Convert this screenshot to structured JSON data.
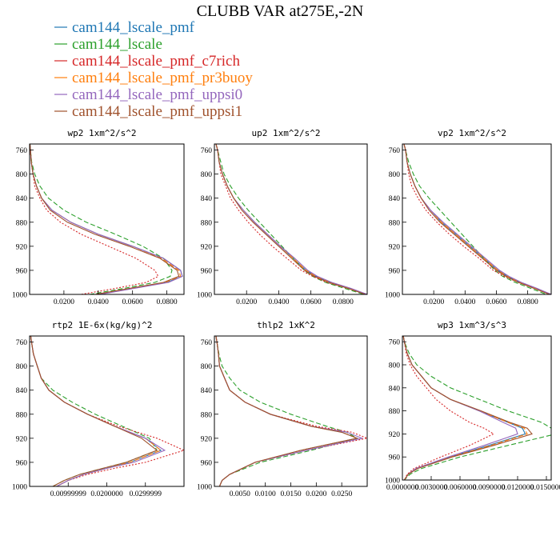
{
  "title": "CLUBB VAR at275E,-2N",
  "legend": [
    {
      "name": "cam144_lscale_pmf",
      "color": "#1f77b4"
    },
    {
      "name": "cam144_lscale",
      "color": "#2ca02c"
    },
    {
      "name": "cam144_lscale_pmf_c7rich",
      "color": "#d62728"
    },
    {
      "name": "cam144_lscale_pmf_pr3buoy",
      "color": "#ff7f0e"
    },
    {
      "name": "cam144_lscale_pmf_uppsi0",
      "color": "#9467bd"
    },
    {
      "name": "cam144_lscale_pmf_uppsi1",
      "color": "#a0522d"
    }
  ],
  "chart_data": [
    {
      "type": "line",
      "title": "wp2   1xm^2/s^2",
      "xlim": [
        0,
        0.09
      ],
      "ylim": [
        1000,
        750
      ],
      "xticks": [
        "0.0200",
        "0.0400",
        "0.0600",
        "0.0800"
      ],
      "xtick_values": [
        0.02,
        0.04,
        0.06,
        0.08
      ],
      "yticks": [
        760,
        800,
        840,
        880,
        920,
        960,
        1000
      ],
      "y": [
        750,
        760,
        780,
        800,
        820,
        840,
        860,
        880,
        900,
        920,
        940,
        960,
        970,
        980,
        990,
        1000
      ],
      "series": [
        {
          "name": "cam144_lscale_pmf",
          "values": [
            0.0002,
            0.0005,
            0.001,
            0.002,
            0.004,
            0.007,
            0.013,
            0.024,
            0.04,
            0.06,
            0.078,
            0.088,
            0.089,
            0.08,
            0.06,
            0.04
          ]
        },
        {
          "name": "cam144_lscale",
          "values": [
            0.0002,
            0.0005,
            0.0012,
            0.003,
            0.006,
            0.011,
            0.02,
            0.033,
            0.05,
            0.066,
            0.078,
            0.083,
            0.082,
            0.073,
            0.055,
            0.035
          ]
        },
        {
          "name": "cam144_lscale_pmf_c7rich",
          "values": [
            0.0002,
            0.0004,
            0.001,
            0.002,
            0.003,
            0.006,
            0.01,
            0.018,
            0.03,
            0.046,
            0.062,
            0.073,
            0.075,
            0.068,
            0.05,
            0.03
          ]
        },
        {
          "name": "cam144_lscale_pmf_pr3buoy",
          "values": [
            0.0002,
            0.0005,
            0.001,
            0.002,
            0.004,
            0.007,
            0.013,
            0.024,
            0.04,
            0.06,
            0.077,
            0.087,
            0.088,
            0.079,
            0.06,
            0.04
          ]
        },
        {
          "name": "cam144_lscale_pmf_uppsi0",
          "values": [
            0.0002,
            0.0005,
            0.001,
            0.002,
            0.004,
            0.007,
            0.013,
            0.024,
            0.04,
            0.06,
            0.078,
            0.088,
            0.089,
            0.081,
            0.061,
            0.041
          ]
        },
        {
          "name": "cam144_lscale_pmf_uppsi1",
          "values": [
            0.0002,
            0.0005,
            0.001,
            0.002,
            0.004,
            0.007,
            0.012,
            0.022,
            0.038,
            0.058,
            0.076,
            0.086,
            0.087,
            0.078,
            0.058,
            0.038
          ]
        }
      ]
    },
    {
      "type": "line",
      "title": "up2   1xm^2/s^2",
      "xlim": [
        0,
        0.095
      ],
      "ylim": [
        1000,
        750
      ],
      "xticks": [
        "0.0200",
        "0.0400",
        "0.0600",
        "0.0800"
      ],
      "xtick_values": [
        0.02,
        0.04,
        0.06,
        0.08
      ],
      "yticks": [
        760,
        800,
        840,
        880,
        920,
        960,
        1000
      ],
      "y": [
        750,
        760,
        780,
        800,
        820,
        840,
        860,
        880,
        900,
        920,
        940,
        960,
        970,
        980,
        990,
        1000
      ],
      "series": [
        {
          "name": "cam144_lscale_pmf",
          "values": [
            0.001,
            0.002,
            0.003,
            0.005,
            0.008,
            0.012,
            0.018,
            0.025,
            0.033,
            0.041,
            0.049,
            0.057,
            0.063,
            0.072,
            0.084,
            0.095
          ]
        },
        {
          "name": "cam144_lscale",
          "values": [
            0.001,
            0.002,
            0.004,
            0.006,
            0.01,
            0.015,
            0.021,
            0.028,
            0.035,
            0.042,
            0.049,
            0.056,
            0.061,
            0.069,
            0.081,
            0.093
          ]
        },
        {
          "name": "cam144_lscale_pmf_c7rich",
          "values": [
            0.001,
            0.002,
            0.003,
            0.004,
            0.007,
            0.01,
            0.015,
            0.021,
            0.028,
            0.036,
            0.045,
            0.054,
            0.061,
            0.07,
            0.083,
            0.095
          ]
        },
        {
          "name": "cam144_lscale_pmf_pr3buoy",
          "values": [
            0.001,
            0.002,
            0.003,
            0.005,
            0.008,
            0.012,
            0.018,
            0.025,
            0.033,
            0.041,
            0.049,
            0.057,
            0.063,
            0.072,
            0.084,
            0.095
          ]
        },
        {
          "name": "cam144_lscale_pmf_uppsi0",
          "values": [
            0.001,
            0.002,
            0.003,
            0.005,
            0.008,
            0.012,
            0.018,
            0.025,
            0.033,
            0.041,
            0.05,
            0.058,
            0.064,
            0.073,
            0.085,
            0.095
          ]
        },
        {
          "name": "cam144_lscale_pmf_uppsi1",
          "values": [
            0.001,
            0.002,
            0.003,
            0.005,
            0.008,
            0.012,
            0.017,
            0.024,
            0.032,
            0.04,
            0.048,
            0.056,
            0.062,
            0.071,
            0.083,
            0.094
          ]
        }
      ]
    },
    {
      "type": "line",
      "title": "vp2   1xm^2/s^2",
      "xlim": [
        0,
        0.095
      ],
      "ylim": [
        1000,
        750
      ],
      "xticks": [
        "0.0200",
        "0.0400",
        "0.0600",
        "0.0800"
      ],
      "xtick_values": [
        0.02,
        0.04,
        0.06,
        0.08
      ],
      "yticks": [
        760,
        800,
        840,
        880,
        920,
        960,
        1000
      ],
      "y": [
        750,
        760,
        780,
        800,
        820,
        840,
        860,
        880,
        900,
        920,
        940,
        960,
        970,
        980,
        990,
        1000
      ],
      "series": [
        {
          "name": "cam144_lscale_pmf",
          "values": [
            0.001,
            0.002,
            0.003,
            0.005,
            0.008,
            0.012,
            0.018,
            0.025,
            0.034,
            0.043,
            0.052,
            0.061,
            0.067,
            0.075,
            0.085,
            0.095
          ]
        },
        {
          "name": "cam144_lscale",
          "values": [
            0.001,
            0.002,
            0.004,
            0.007,
            0.011,
            0.017,
            0.024,
            0.031,
            0.038,
            0.045,
            0.052,
            0.059,
            0.064,
            0.072,
            0.082,
            0.092
          ]
        },
        {
          "name": "cam144_lscale_pmf_c7rich",
          "values": [
            0.001,
            0.002,
            0.003,
            0.004,
            0.006,
            0.01,
            0.015,
            0.022,
            0.03,
            0.039,
            0.049,
            0.058,
            0.065,
            0.074,
            0.085,
            0.095
          ]
        },
        {
          "name": "cam144_lscale_pmf_pr3buoy",
          "values": [
            0.001,
            0.002,
            0.003,
            0.005,
            0.008,
            0.012,
            0.018,
            0.025,
            0.034,
            0.043,
            0.052,
            0.061,
            0.067,
            0.075,
            0.085,
            0.095
          ]
        },
        {
          "name": "cam144_lscale_pmf_uppsi0",
          "values": [
            0.001,
            0.002,
            0.003,
            0.005,
            0.008,
            0.012,
            0.018,
            0.026,
            0.035,
            0.044,
            0.053,
            0.062,
            0.068,
            0.076,
            0.086,
            0.095
          ]
        },
        {
          "name": "cam144_lscale_pmf_uppsi1",
          "values": [
            0.001,
            0.002,
            0.003,
            0.005,
            0.008,
            0.012,
            0.017,
            0.024,
            0.033,
            0.042,
            0.051,
            0.06,
            0.066,
            0.074,
            0.084,
            0.094
          ]
        }
      ]
    },
    {
      "type": "line",
      "title": "rtp2   1E-6x(kg/kg)^2",
      "xlim": [
        0,
        0.04
      ],
      "ylim": [
        1000,
        750
      ],
      "xticks": [
        "0.00999999",
        "0.0200000",
        "0.0299999"
      ],
      "xtick_values": [
        0.01,
        0.02,
        0.03
      ],
      "yticks": [
        760,
        800,
        840,
        880,
        920,
        960,
        1000
      ],
      "y": [
        750,
        760,
        780,
        800,
        820,
        840,
        860,
        880,
        900,
        920,
        940,
        960,
        970,
        980,
        990,
        1000
      ],
      "series": [
        {
          "name": "cam144_lscale_pmf",
          "values": [
            0.0003,
            0.0005,
            0.001,
            0.002,
            0.003,
            0.005,
            0.009,
            0.015,
            0.022,
            0.03,
            0.034,
            0.026,
            0.02,
            0.014,
            0.01,
            0.007
          ]
        },
        {
          "name": "cam144_lscale",
          "values": [
            0.0003,
            0.0005,
            0.001,
            0.002,
            0.003,
            0.006,
            0.011,
            0.017,
            0.024,
            0.031,
            0.033,
            0.025,
            0.019,
            0.013,
            0.009,
            0.006
          ]
        },
        {
          "name": "cam144_lscale_pmf_c7rich",
          "values": [
            0.0003,
            0.0005,
            0.001,
            0.002,
            0.003,
            0.005,
            0.009,
            0.015,
            0.023,
            0.033,
            0.04,
            0.03,
            0.022,
            0.015,
            0.01,
            0.007
          ]
        },
        {
          "name": "cam144_lscale_pmf_pr3buoy",
          "values": [
            0.0003,
            0.0005,
            0.001,
            0.002,
            0.003,
            0.005,
            0.009,
            0.015,
            0.022,
            0.03,
            0.034,
            0.026,
            0.02,
            0.014,
            0.01,
            0.007
          ]
        },
        {
          "name": "cam144_lscale_pmf_uppsi0",
          "values": [
            0.0003,
            0.0005,
            0.001,
            0.002,
            0.003,
            0.005,
            0.009,
            0.015,
            0.022,
            0.03,
            0.035,
            0.027,
            0.02,
            0.014,
            0.01,
            0.007
          ]
        },
        {
          "name": "cam144_lscale_pmf_uppsi1",
          "values": [
            0.0003,
            0.0005,
            0.001,
            0.002,
            0.003,
            0.005,
            0.009,
            0.015,
            0.022,
            0.029,
            0.033,
            0.025,
            0.019,
            0.013,
            0.009,
            0.006
          ]
        }
      ]
    },
    {
      "type": "line",
      "title": "thlp2   1xK^2",
      "xlim": [
        0,
        0.03
      ],
      "ylim": [
        1000,
        750
      ],
      "xticks": [
        "0.0050",
        "0.0100",
        "0.0150",
        "0.0200",
        "0.0250"
      ],
      "xtick_values": [
        0.005,
        0.01,
        0.015,
        0.02,
        0.025
      ],
      "yticks": [
        760,
        800,
        840,
        880,
        920,
        960,
        1000
      ],
      "y": [
        750,
        760,
        780,
        800,
        820,
        840,
        860,
        880,
        900,
        910,
        920,
        940,
        960,
        980,
        990,
        1000
      ],
      "series": [
        {
          "name": "cam144_lscale_pmf",
          "values": [
            0.0003,
            0.0005,
            0.0008,
            0.001,
            0.002,
            0.003,
            0.006,
            0.011,
            0.019,
            0.025,
            0.028,
            0.017,
            0.008,
            0.003,
            0.0015,
            0.001
          ]
        },
        {
          "name": "cam144_lscale",
          "values": [
            0.0003,
            0.0005,
            0.0009,
            0.0015,
            0.003,
            0.005,
            0.009,
            0.015,
            0.022,
            0.026,
            0.028,
            0.019,
            0.009,
            0.003,
            0.0015,
            0.001
          ]
        },
        {
          "name": "cam144_lscale_pmf_c7rich",
          "values": [
            0.0003,
            0.0005,
            0.0008,
            0.001,
            0.002,
            0.003,
            0.006,
            0.011,
            0.02,
            0.027,
            0.03,
            0.018,
            0.008,
            0.003,
            0.0015,
            0.001
          ]
        },
        {
          "name": "cam144_lscale_pmf_pr3buoy",
          "values": [
            0.0003,
            0.0005,
            0.0008,
            0.001,
            0.002,
            0.003,
            0.006,
            0.011,
            0.019,
            0.025,
            0.028,
            0.017,
            0.008,
            0.003,
            0.0015,
            0.001
          ]
        },
        {
          "name": "cam144_lscale_pmf_uppsi0",
          "values": [
            0.0003,
            0.0005,
            0.0008,
            0.001,
            0.002,
            0.003,
            0.006,
            0.011,
            0.019,
            0.026,
            0.029,
            0.018,
            0.008,
            0.003,
            0.0015,
            0.001
          ]
        },
        {
          "name": "cam144_lscale_pmf_uppsi1",
          "values": [
            0.0003,
            0.0005,
            0.0008,
            0.001,
            0.002,
            0.003,
            0.006,
            0.011,
            0.019,
            0.025,
            0.028,
            0.017,
            0.008,
            0.003,
            0.0015,
            0.001
          ]
        }
      ]
    },
    {
      "type": "line",
      "title": "wp3   1xm^3/s^3",
      "xlim": [
        0,
        0.0155
      ],
      "ylim": [
        1000,
        750
      ],
      "xticks": [
        "0.0000000",
        "0.0030000",
        "0.0060000",
        "0.0090000",
        "0.0120000",
        "0.0150000"
      ],
      "xtick_values": [
        0,
        0.003,
        0.006,
        0.009,
        0.012,
        0.015
      ],
      "yticks": [
        760,
        800,
        840,
        880,
        920,
        960,
        1000
      ],
      "y": [
        750,
        760,
        780,
        800,
        820,
        840,
        860,
        880,
        900,
        910,
        920,
        940,
        960,
        980,
        990,
        1000
      ],
      "series": [
        {
          "name": "cam144_lscale_pmf",
          "values": [
            0.0001,
            0.0002,
            0.0005,
            0.001,
            0.002,
            0.003,
            0.005,
            0.008,
            0.011,
            0.0125,
            0.0128,
            0.009,
            0.005,
            0.0015,
            0.0006,
            0.0002
          ]
        },
        {
          "name": "cam144_lscale",
          "values": [
            0.0001,
            0.0002,
            0.0007,
            0.0015,
            0.003,
            0.005,
            0.008,
            0.011,
            0.0145,
            0.0155,
            0.016,
            0.011,
            0.006,
            0.002,
            0.0008,
            0.0002
          ]
        },
        {
          "name": "cam144_lscale_pmf_c7rich",
          "values": [
            0.0001,
            0.0002,
            0.0004,
            0.0008,
            0.0015,
            0.0025,
            0.0035,
            0.005,
            0.007,
            0.0085,
            0.0095,
            0.007,
            0.004,
            0.0012,
            0.0005,
            0.0002
          ]
        },
        {
          "name": "cam144_lscale_pmf_pr3buoy",
          "values": [
            0.0001,
            0.0002,
            0.0005,
            0.001,
            0.002,
            0.003,
            0.005,
            0.008,
            0.011,
            0.0127,
            0.013,
            0.0092,
            0.005,
            0.0015,
            0.0006,
            0.0002
          ]
        },
        {
          "name": "cam144_lscale_pmf_uppsi0",
          "values": [
            0.0001,
            0.0002,
            0.0005,
            0.001,
            0.002,
            0.003,
            0.005,
            0.008,
            0.0105,
            0.0118,
            0.012,
            0.0085,
            0.0048,
            0.0014,
            0.0006,
            0.0002
          ]
        },
        {
          "name": "cam144_lscale_pmf_uppsi1",
          "values": [
            0.0001,
            0.0002,
            0.0005,
            0.001,
            0.002,
            0.003,
            0.005,
            0.0082,
            0.0112,
            0.013,
            0.0135,
            0.0095,
            0.0052,
            0.0016,
            0.0006,
            0.0002
          ]
        }
      ]
    }
  ]
}
